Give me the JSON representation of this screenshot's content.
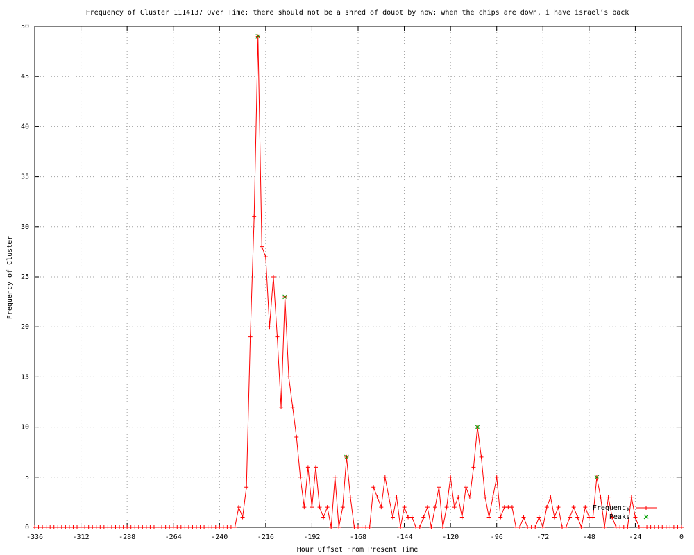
{
  "chart_data": {
    "type": "line",
    "title": "Frequency of Cluster 1114137 Over Time: there should not be a shred of doubt by now: when the chips are down, i have israel’s back",
    "xlabel": "Hour Offset From Present Time",
    "ylabel": "Frequency of Cluster",
    "xlim": [
      -336,
      0
    ],
    "ylim": [
      0,
      50
    ],
    "xticks": [
      -336,
      -312,
      -288,
      -264,
      -240,
      -216,
      -192,
      -168,
      -144,
      -120,
      -96,
      -72,
      -48,
      -24,
      0
    ],
    "yticks": [
      0,
      5,
      10,
      15,
      20,
      25,
      30,
      35,
      40,
      45,
      50
    ],
    "grid": true,
    "legend": "bottom-right",
    "series": [
      {
        "name": "Frequency",
        "color": "#ff0000",
        "x": [
          -336,
          -334,
          -332,
          -330,
          -328,
          -326,
          -324,
          -322,
          -320,
          -318,
          -316,
          -314,
          -312,
          -310,
          -308,
          -306,
          -304,
          -302,
          -300,
          -298,
          -296,
          -294,
          -292,
          -290,
          -288,
          -286,
          -284,
          -282,
          -280,
          -278,
          -276,
          -274,
          -272,
          -270,
          -268,
          -266,
          -264,
          -262,
          -260,
          -258,
          -256,
          -254,
          -252,
          -250,
          -248,
          -246,
          -244,
          -242,
          -240,
          -238,
          -236,
          -234,
          -232,
          -230,
          -228,
          -226,
          -224,
          -222,
          -220,
          -218,
          -216,
          -214,
          -212,
          -210,
          -208,
          -206,
          -204,
          -202,
          -200,
          -198,
          -196,
          -194,
          -192,
          -190,
          -188,
          -186,
          -184,
          -182,
          -180,
          -178,
          -176,
          -174,
          -172,
          -170,
          -168,
          -166,
          -164,
          -162,
          -160,
          -158,
          -156,
          -154,
          -152,
          -150,
          -148,
          -146,
          -144,
          -142,
          -140,
          -138,
          -136,
          -134,
          -132,
          -130,
          -128,
          -126,
          -124,
          -122,
          -120,
          -118,
          -116,
          -114,
          -112,
          -110,
          -108,
          -106,
          -104,
          -102,
          -100,
          -98,
          -96,
          -94,
          -92,
          -90,
          -88,
          -86,
          -84,
          -82,
          -80,
          -78,
          -76,
          -74,
          -72,
          -70,
          -68,
          -66,
          -64,
          -62,
          -60,
          -58,
          -56,
          -54,
          -52,
          -50,
          -48,
          -46,
          -44,
          -42,
          -40,
          -38,
          -36,
          -34,
          -32,
          -30,
          -28,
          -26,
          -24,
          -22,
          -20,
          -18,
          -16,
          -14,
          -12,
          -10,
          -8,
          -6,
          -4,
          -2,
          0
        ],
        "values": [
          0,
          0,
          0,
          0,
          0,
          0,
          0,
          0,
          0,
          0,
          0,
          0,
          0,
          0,
          0,
          0,
          0,
          0,
          0,
          0,
          0,
          0,
          0,
          0,
          0,
          0,
          0,
          0,
          0,
          0,
          0,
          0,
          0,
          0,
          0,
          0,
          0,
          0,
          0,
          0,
          0,
          0,
          0,
          0,
          0,
          0,
          0,
          0,
          0,
          0,
          0,
          0,
          0,
          2,
          1,
          4,
          19,
          31,
          49,
          28,
          27,
          20,
          25,
          19,
          12,
          23,
          15,
          12,
          9,
          5,
          2,
          6,
          2,
          6,
          2,
          1,
          2,
          0,
          5,
          0,
          2,
          7,
          3,
          0,
          0,
          0,
          0,
          0,
          4,
          3,
          2,
          5,
          3,
          1,
          3,
          0,
          2,
          1,
          1,
          0,
          0,
          1,
          2,
          0,
          2,
          4,
          0,
          2,
          5,
          2,
          3,
          1,
          4,
          3,
          6,
          10,
          7,
          3,
          1,
          3,
          5,
          1,
          2,
          2,
          2,
          0,
          0,
          1,
          0,
          0,
          0,
          1,
          0,
          2,
          3,
          1,
          2,
          0,
          0,
          1,
          2,
          1,
          0,
          2,
          1,
          1,
          5,
          3,
          0,
          3,
          1,
          0,
          0,
          0,
          0,
          3,
          1,
          0,
          0,
          0,
          0,
          0,
          0,
          0,
          0,
          0,
          0,
          0,
          0
        ]
      },
      {
        "name": "Peaks",
        "color": "#00a000",
        "x": [
          -220,
          -206,
          -174,
          -106,
          -44
        ],
        "values": [
          49,
          23,
          7,
          10,
          5
        ]
      }
    ]
  }
}
